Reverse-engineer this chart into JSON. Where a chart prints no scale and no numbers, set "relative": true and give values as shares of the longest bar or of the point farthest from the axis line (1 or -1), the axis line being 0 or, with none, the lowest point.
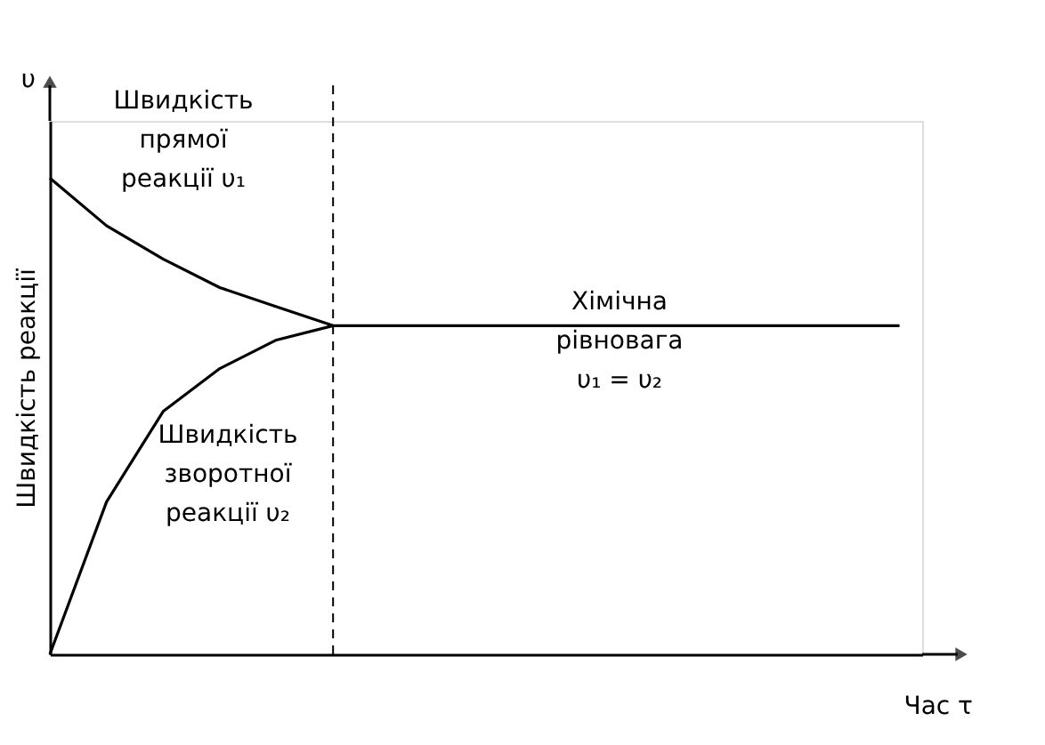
{
  "chart_data": {
    "type": "line",
    "relative": true,
    "xlabel": "Час  τ",
    "ylabel": "Швидкість реакції",
    "categories": [
      null,
      null,
      null,
      null,
      null,
      null,
      null,
      null,
      null,
      null,
      null,
      null,
      null,
      null,
      null,
      null
    ],
    "marker": "none",
    "line_style": "solid",
    "series": [
      {
        "color": "#000000",
        "values": [
          1,
          0.9,
          0.83,
          0.77,
          0.73,
          0.69,
          0.69,
          0.69,
          0.69,
          0.69,
          0.69,
          0.69,
          0.69,
          0.69,
          0.69,
          0.69
        ]
      },
      {
        "color": "#000000",
        "values": [
          0,
          0.32,
          0.51,
          0.6,
          0.66,
          0.69,
          null,
          null,
          null,
          null,
          null,
          null,
          null,
          null,
          null,
          null
        ]
      }
    ],
    "annotations": [
      "υ",
      "Швидкість\nпрямої\nреакції υ₁",
      "Швидкість\nзворотної\nреакції υ₂",
      "Хімічна\nрівновага\nυ₁ = υ₂"
    ]
  }
}
